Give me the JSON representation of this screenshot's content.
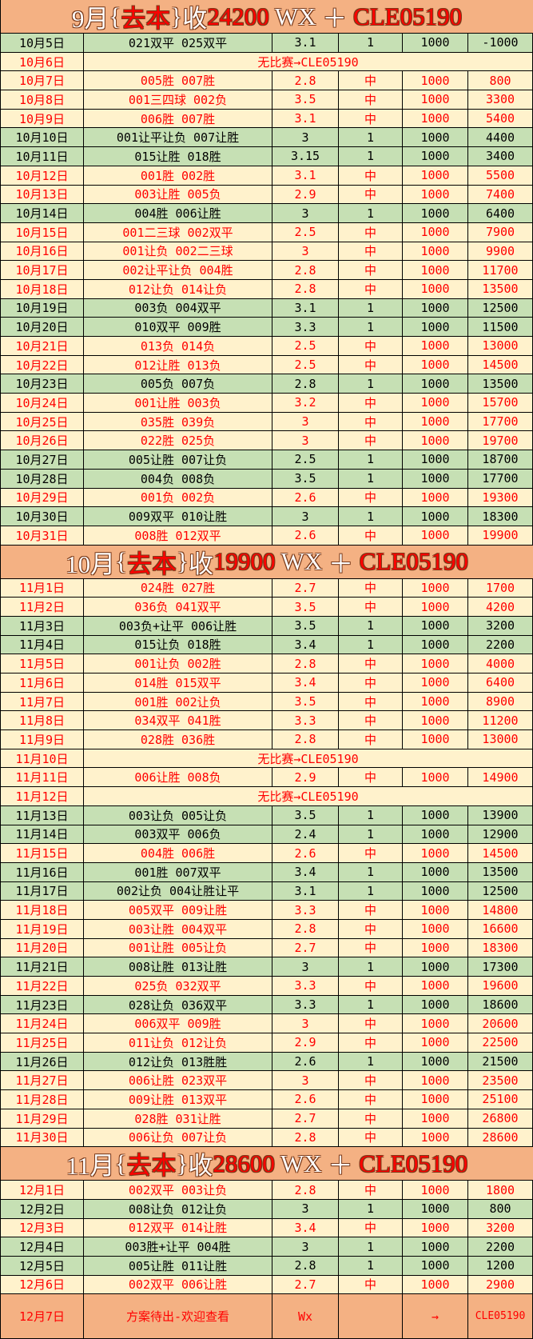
{
  "colors": {
    "header_bg": "#f4b183",
    "win_bg": "#fff2cc",
    "loss_bg": "#c6e0b4",
    "accent": "#ff0000"
  },
  "sections": [
    {
      "title": {
        "month": "9月",
        "open": "{",
        "label": "去本",
        "close": "}",
        "verb": "收",
        "amount": "24200",
        "wx": " WX ",
        "plus": "＋ ",
        "code": "CLE05190"
      },
      "rows": [
        [
          "10月5日",
          "021双平 025双平",
          "3.1",
          "1",
          "1000",
          "-1000",
          "loss"
        ],
        [
          "10月6日",
          "无比赛→CLE05190",
          "",
          "",
          "",
          "",
          "none"
        ],
        [
          "10月7日",
          "005胜 007胜",
          "2.8",
          "中",
          "1000",
          "800",
          "win"
        ],
        [
          "10月8日",
          "001三四球 002负",
          "3.5",
          "中",
          "1000",
          "3300",
          "win"
        ],
        [
          "10月9日",
          "006胜 007胜",
          "3.1",
          "中",
          "1000",
          "5400",
          "win"
        ],
        [
          "10月10日",
          "001让平让负 007让胜",
          "3",
          "1",
          "1000",
          "4400",
          "loss"
        ],
        [
          "10月11日",
          "015让胜 018胜",
          "3.15",
          "1",
          "1000",
          "3400",
          "loss"
        ],
        [
          "10月12日",
          "001胜 002胜",
          "3.1",
          "中",
          "1000",
          "5500",
          "win"
        ],
        [
          "10月13日",
          "003让胜 005负",
          "2.9",
          "中",
          "1000",
          "7400",
          "win"
        ],
        [
          "10月14日",
          "004胜 006让胜",
          "3",
          "1",
          "1000",
          "6400",
          "loss"
        ],
        [
          "10月15日",
          "001二三球 002双平",
          "2.5",
          "中",
          "1000",
          "7900",
          "win"
        ],
        [
          "10月16日",
          "001让负 002二三球",
          "3",
          "中",
          "1000",
          "9900",
          "win"
        ],
        [
          "10月17日",
          "002让平让负 004胜",
          "2.8",
          "中",
          "1000",
          "11700",
          "win"
        ],
        [
          "10月18日",
          "012让负 014让负",
          "2.8",
          "中",
          "1000",
          "13500",
          "win"
        ],
        [
          "10月19日",
          "003负 004双平",
          "3.1",
          "1",
          "1000",
          "12500",
          "loss"
        ],
        [
          "10月20日",
          "010双平 009胜",
          "3.3",
          "1",
          "1000",
          "11500",
          "loss"
        ],
        [
          "10月21日",
          "013负 014负",
          "2.5",
          "中",
          "1000",
          "13000",
          "win"
        ],
        [
          "10月22日",
          "012让胜 013负",
          "2.5",
          "中",
          "1000",
          "14500",
          "win"
        ],
        [
          "10月23日",
          "005负 007负",
          "2.8",
          "1",
          "1000",
          "13500",
          "loss"
        ],
        [
          "10月24日",
          "001让胜 003负",
          "3.2",
          "中",
          "1000",
          "15700",
          "win"
        ],
        [
          "10月25日",
          "035胜 039负",
          "3",
          "中",
          "1000",
          "17700",
          "win"
        ],
        [
          "10月26日",
          "022胜 025负",
          "3",
          "中",
          "1000",
          "19700",
          "win"
        ],
        [
          "10月27日",
          "005让胜 007让负",
          "2.5",
          "1",
          "1000",
          "18700",
          "loss"
        ],
        [
          "10月28日",
          "004负 008负",
          "3.5",
          "1",
          "1000",
          "17700",
          "loss"
        ],
        [
          "10月29日",
          "001负 002负",
          "2.6",
          "中",
          "1000",
          "19300",
          "win"
        ],
        [
          "10月30日",
          "009双平 010让胜",
          "3",
          "1",
          "1000",
          "18300",
          "loss"
        ],
        [
          "10月31日",
          "008胜 012双平",
          "2.6",
          "中",
          "1000",
          "19900",
          "win"
        ]
      ]
    },
    {
      "title": {
        "month": "10月",
        "open": "{",
        "label": "去本",
        "close": "}",
        "verb": "收",
        "amount": "19900",
        "wx": " WX ",
        "plus": "＋ ",
        "code": "CLE05190"
      },
      "rows": [
        [
          "11月1日",
          "024胜 027胜",
          "2.7",
          "中",
          "1000",
          "1700",
          "win"
        ],
        [
          "11月2日",
          "036负 041双平",
          "3.5",
          "中",
          "1000",
          "4200",
          "win"
        ],
        [
          "11月3日",
          "003负+让平 006让胜",
          "3.5",
          "1",
          "1000",
          "3200",
          "loss"
        ],
        [
          "11月4日",
          "015让负 018胜",
          "3.4",
          "1",
          "1000",
          "2200",
          "loss"
        ],
        [
          "11月5日",
          "001让负 002胜",
          "2.8",
          "中",
          "1000",
          "4000",
          "win"
        ],
        [
          "11月6日",
          "014胜 015双平",
          "3.4",
          "中",
          "1000",
          "6400",
          "win"
        ],
        [
          "11月7日",
          "001胜 002让负",
          "3.5",
          "中",
          "1000",
          "8900",
          "win"
        ],
        [
          "11月8日",
          "034双平 041胜",
          "3.3",
          "中",
          "1000",
          "11200",
          "win"
        ],
        [
          "11月9日",
          "028胜 036胜",
          "2.8",
          "中",
          "1000",
          "13000",
          "win"
        ],
        [
          "11月10日",
          "无比赛→CLE05190",
          "",
          "",
          "",
          "",
          "none"
        ],
        [
          "11月11日",
          "006让胜 008负",
          "2.9",
          "中",
          "1000",
          "14900",
          "win"
        ],
        [
          "11月12日",
          "无比赛→CLE05190",
          "",
          "",
          "",
          "",
          "none"
        ],
        [
          "11月13日",
          "003让负 005让负",
          "3.5",
          "1",
          "1000",
          "13900",
          "loss"
        ],
        [
          "11月14日",
          "003双平 006负",
          "2.4",
          "1",
          "1000",
          "12900",
          "loss"
        ],
        [
          "11月15日",
          "004胜 006胜",
          "2.6",
          "中",
          "1000",
          "14500",
          "win"
        ],
        [
          "11月16日",
          "001胜 007双平",
          "3.4",
          "1",
          "1000",
          "13500",
          "loss"
        ],
        [
          "11月17日",
          "002让负 004让胜让平",
          "3.1",
          "1",
          "1000",
          "12500",
          "loss"
        ],
        [
          "11月18日",
          "005双平 009让胜",
          "3.3",
          "中",
          "1000",
          "14800",
          "win"
        ],
        [
          "11月19日",
          "003让胜 004双平",
          "2.8",
          "中",
          "1000",
          "16600",
          "win"
        ],
        [
          "11月20日",
          "001让胜 005让负",
          "2.7",
          "中",
          "1000",
          "18300",
          "win"
        ],
        [
          "11月21日",
          "008让胜 013让胜",
          "3",
          "1",
          "1000",
          "17300",
          "loss"
        ],
        [
          "11月22日",
          "025负 032双平",
          "3.3",
          "中",
          "1000",
          "19600",
          "win"
        ],
        [
          "11月23日",
          "028让负 036双平",
          "3.3",
          "1",
          "1000",
          "18600",
          "loss"
        ],
        [
          "11月24日",
          "006双平 009胜",
          "3",
          "中",
          "1000",
          "20600",
          "win"
        ],
        [
          "11月25日",
          "011让负 012让负",
          "2.9",
          "中",
          "1000",
          "22500",
          "win"
        ],
        [
          "11月26日",
          "012让负 013胜胜",
          "2.6",
          "1",
          "1000",
          "21500",
          "loss"
        ],
        [
          "11月27日",
          "006让胜 023双平",
          "3",
          "中",
          "1000",
          "23500",
          "win"
        ],
        [
          "11月28日",
          "009让胜 013双平",
          "2.6",
          "中",
          "1000",
          "25100",
          "win"
        ],
        [
          "11月29日",
          "028胜 031让胜",
          "2.7",
          "中",
          "1000",
          "26800",
          "win"
        ],
        [
          "11月30日",
          "006让负 007让负",
          "2.8",
          "中",
          "1000",
          "28600",
          "win"
        ]
      ]
    },
    {
      "title": {
        "month": "11月",
        "open": "{",
        "label": "去本",
        "close": "}",
        "verb": "收",
        "amount": "28600",
        "wx": " WX ",
        "plus": "＋ ",
        "code": "CLE05190"
      },
      "rows": [
        [
          "12月1日",
          "002双平 003让负",
          "2.8",
          "中",
          "1000",
          "1800",
          "win"
        ],
        [
          "12月2日",
          "008让负 012让负",
          "3",
          "1",
          "1000",
          "800",
          "loss"
        ],
        [
          "12月3日",
          "012双平 014让胜",
          "3.4",
          "中",
          "1000",
          "3200",
          "win"
        ],
        [
          "12月4日",
          "003胜+让平 004胜",
          "3",
          "1",
          "1000",
          "2200",
          "loss"
        ],
        [
          "12月5日",
          "005让胜 011让胜",
          "2.8",
          "1",
          "1000",
          "1200",
          "loss"
        ],
        [
          "12月6日",
          "002双平 006让胜",
          "2.7",
          "中",
          "1000",
          "2900",
          "win"
        ],
        [
          "12月7日",
          "方案待出-欢迎查看",
          "Wx",
          "",
          "→",
          "CLE05190",
          "final"
        ]
      ]
    }
  ]
}
